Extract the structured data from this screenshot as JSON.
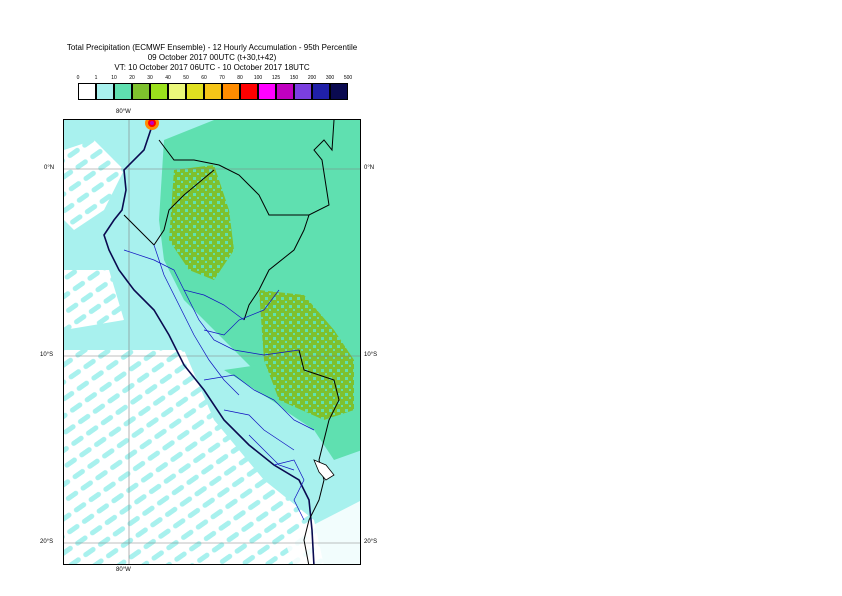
{
  "title": {
    "line1": "Total Precipitation (ECMWF Ensemble) - 12 Hourly Accumulation - 95th Percentile",
    "line2": "09 October 2017 00UTC (t+30,t+42)",
    "line3": "VT: 10 October 2017 06UTC - 10 October 2017 18UTC"
  },
  "legend": {
    "thresholds": [
      "0",
      "1",
      "10",
      "20",
      "30",
      "40",
      "50",
      "60",
      "70",
      "80",
      "100",
      "125",
      "150",
      "200",
      "300",
      "500"
    ],
    "colors": [
      "#ffffff",
      "#a8f1ee",
      "#5fe0b0",
      "#7ec12e",
      "#9be01c",
      "#eaf77a",
      "#e0e020",
      "#f5c518",
      "#ff8c00",
      "#ff0000",
      "#ff00ff",
      "#c000c0",
      "#7b3fe0",
      "#2020a8",
      "#0a0a50"
    ]
  },
  "map": {
    "axes": {
      "top_lon": "80°W",
      "bottom_lon": "80°W",
      "lat_left": [
        "0°N",
        "10°S",
        "20°S"
      ],
      "lat_right": [
        "0°N",
        "10°S",
        "20°S"
      ]
    },
    "colors": {
      "ocean_light": "#a8f1ee",
      "rain_medium": "#5fe0b0",
      "rain_heavy": "#7ec12e",
      "coast": "#0a0a50",
      "borders": "#000000",
      "regions": "#1010c0",
      "grid": "#808080"
    }
  }
}
